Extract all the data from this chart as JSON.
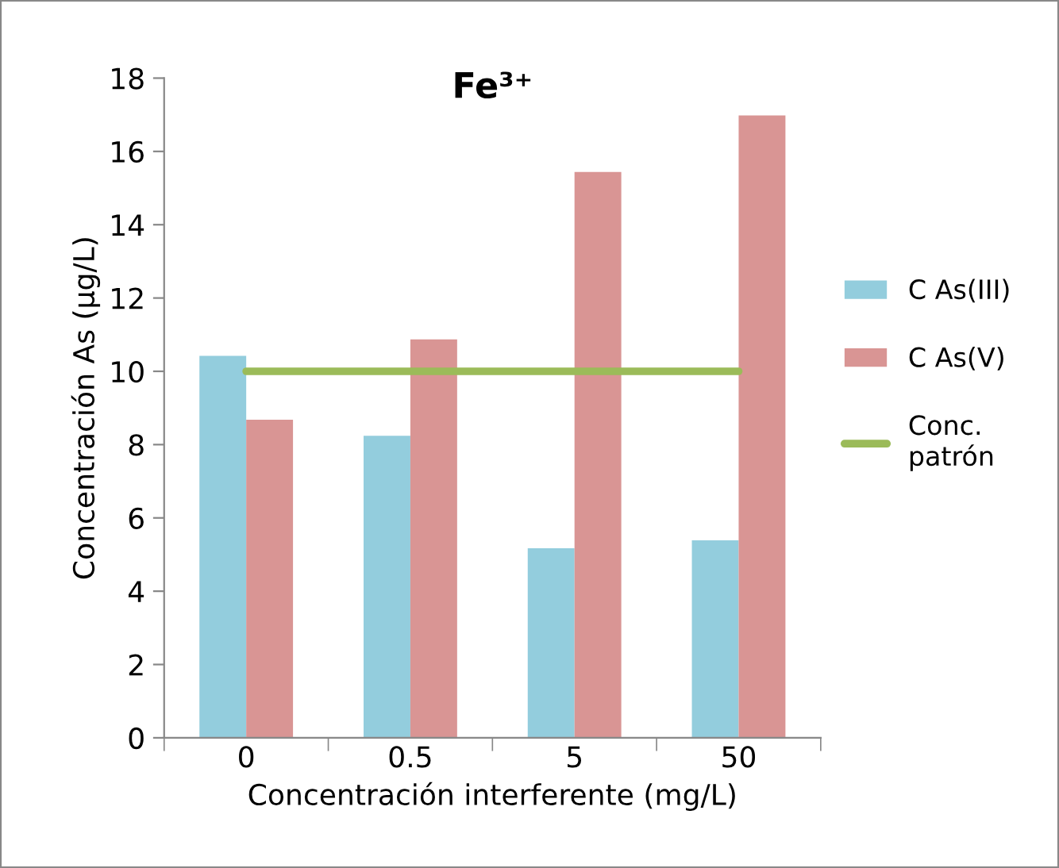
{
  "chart_data": {
    "type": "bar",
    "title": "Fe³⁺",
    "xlabel": "Concentración interferente (mg/L)",
    "ylabel": "Concentración As (µg/L)",
    "categories": [
      "0",
      "0.5",
      "5",
      "50"
    ],
    "series": [
      {
        "name": "C As(III)",
        "color": "#93cddd",
        "values": [
          10.42,
          8.24,
          5.17,
          5.39
        ]
      },
      {
        "name": "C As(V)",
        "color": "#d99594",
        "values": [
          8.68,
          10.87,
          15.44,
          16.98
        ]
      },
      {
        "name": "Conc.\npatrón",
        "color": "#9bbb59",
        "type": "line",
        "values": [
          10,
          10,
          10,
          10
        ]
      }
    ],
    "ylim": [
      0,
      18
    ],
    "yticks": [
      0,
      2,
      4,
      6,
      8,
      10,
      12,
      14,
      16,
      18
    ],
    "grid": false,
    "legend": "right"
  }
}
